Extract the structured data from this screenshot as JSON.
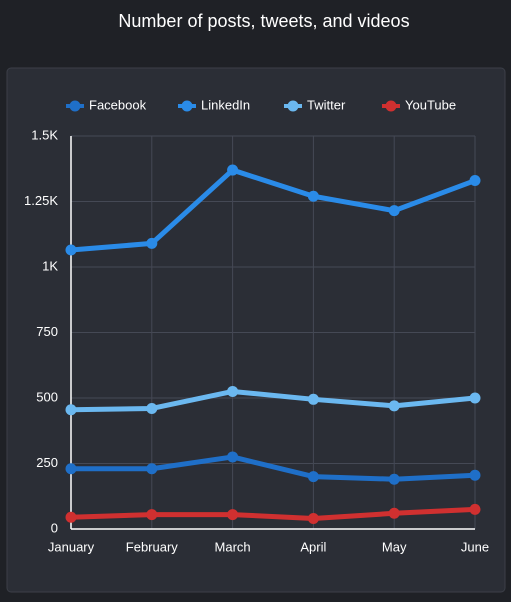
{
  "chart_data": {
    "type": "line",
    "title": "Number of posts, tweets, and videos",
    "categories": [
      "January",
      "February",
      "March",
      "April",
      "May",
      "June"
    ],
    "series": [
      {
        "name": "Facebook",
        "color": "#1f6fc8",
        "values": [
          230,
          230,
          275,
          200,
          190,
          205
        ]
      },
      {
        "name": "LinkedIn",
        "color": "#2a8be8",
        "values": [
          1065,
          1090,
          1370,
          1270,
          1215,
          1330
        ]
      },
      {
        "name": "Twitter",
        "color": "#6bb8f0",
        "values": [
          455,
          460,
          525,
          495,
          470,
          500
        ]
      },
      {
        "name": "YouTube",
        "color": "#d03030",
        "values": [
          45,
          55,
          55,
          40,
          60,
          75
        ]
      }
    ],
    "ylim": [
      0,
      1500
    ],
    "yticks": [
      0,
      250,
      500,
      750,
      {
        "value": 1000,
        "label": "1K"
      },
      {
        "value": 1250,
        "label": "1.25K"
      },
      {
        "value": 1500,
        "label": "1.5K"
      }
    ],
    "grid": true,
    "legend": "top"
  }
}
